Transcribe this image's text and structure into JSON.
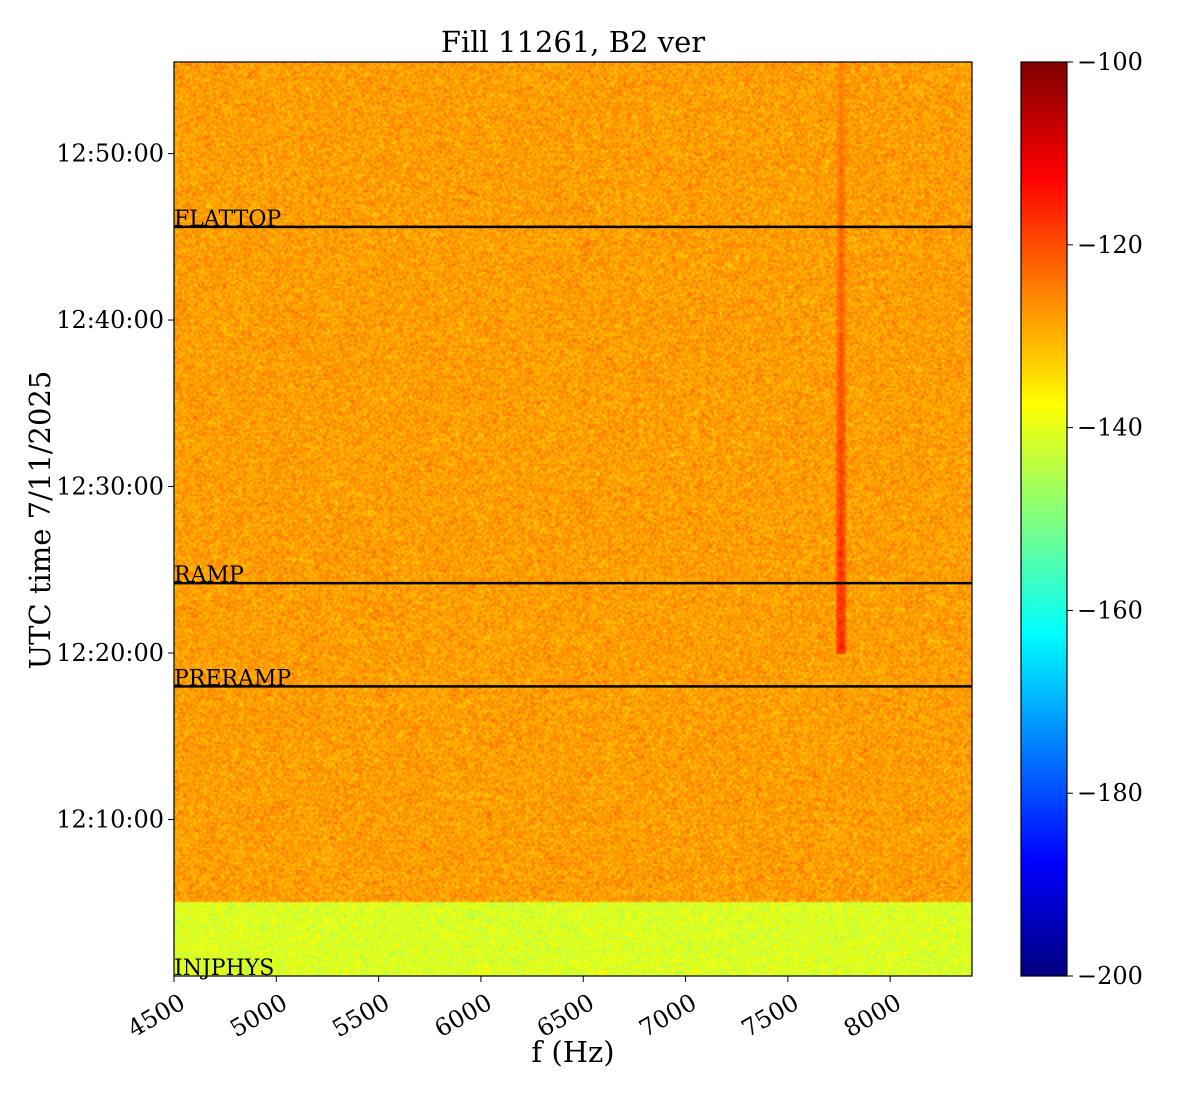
{
  "chart_data": {
    "type": "heatmap",
    "title": "Fill 11261, B2 ver",
    "xlabel": "f (Hz)",
    "ylabel": "UTC time 7/11/2025",
    "xlim": [
      4500,
      8400
    ],
    "xticks": [
      4500,
      5000,
      5500,
      6000,
      6500,
      7000,
      7500,
      8000
    ],
    "xtick_labels": [
      "4500",
      "5000",
      "5500",
      "6000",
      "6500",
      "7000",
      "7500",
      "8000"
    ],
    "ylim_minutes": [
      0.6,
      55.5
    ],
    "yticks_minutes": [
      10,
      20,
      30,
      40,
      50
    ],
    "ytick_labels": [
      "12:10:00",
      "12:20:00",
      "12:30:00",
      "12:40:00",
      "12:50:00"
    ],
    "colorbar": {
      "colormap": "jet",
      "range": [
        -200,
        -100
      ],
      "ticks": [
        -100,
        -120,
        -140,
        -160,
        -180,
        -200
      ],
      "tick_labels": [
        "−100",
        "−120",
        "−140",
        "−160",
        "−180",
        "−200"
      ]
    },
    "background_level": -128,
    "early_band": {
      "until_minutes": 5,
      "level": -141
    },
    "spectral_line": {
      "frequency": 7760,
      "start_minutes": 20,
      "level_start": -116,
      "level_end": -125
    },
    "events": [
      {
        "label": "FLATTOP",
        "time_minutes": 45.6
      },
      {
        "label": "RAMP",
        "time_minutes": 24.2
      },
      {
        "label": "PRERAMP",
        "time_minutes": 18.0
      },
      {
        "label": "INJPHYS",
        "time_minutes": 0.6
      }
    ]
  }
}
